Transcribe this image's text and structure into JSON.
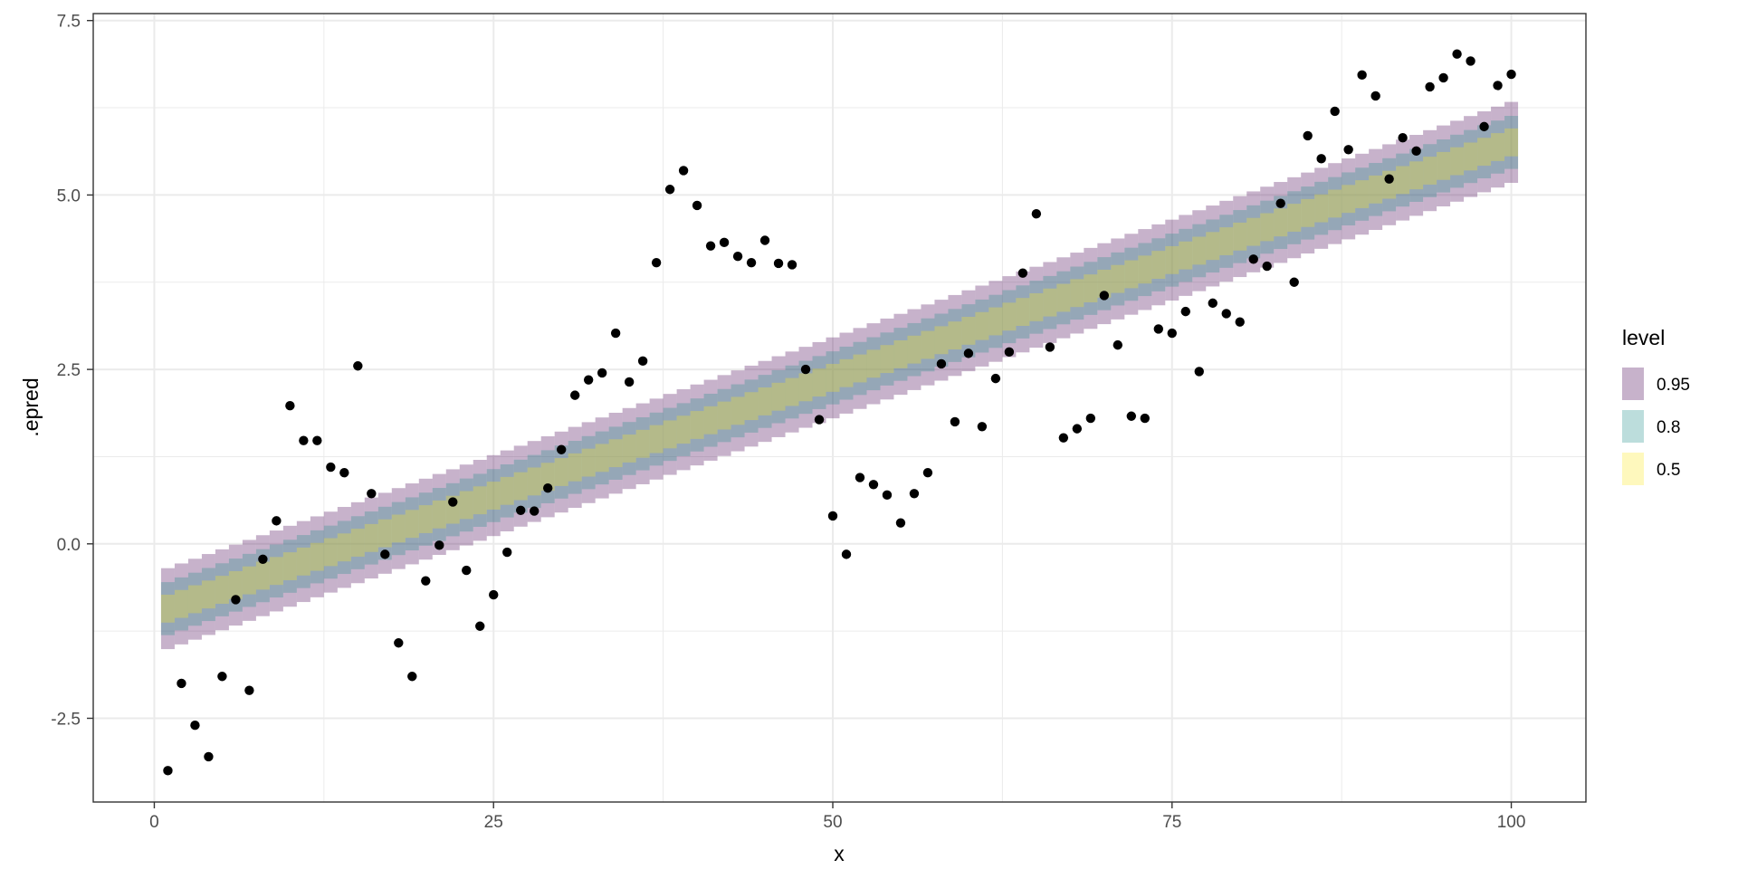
{
  "chart_data": {
    "type": "line",
    "title": "",
    "xlabel": "x",
    "ylabel": ".epred",
    "xlim": [
      -4.5,
      105.5
    ],
    "ylim": [
      -3.7,
      7.6
    ],
    "x_ticks": [
      0,
      25,
      50,
      75,
      100
    ],
    "y_ticks": [
      -2.5,
      0.0,
      2.5,
      5.0,
      7.5
    ],
    "x_tick_labels": [
      "0",
      "25",
      "50",
      "75",
      "100"
    ],
    "y_tick_labels": [
      "-2.5",
      "0.0",
      "2.5",
      "5.0",
      "7.5"
    ],
    "grid": true,
    "legend": {
      "title": "level",
      "position": "right",
      "entries": [
        {
          "label": "0.95",
          "color": "#440154",
          "alpha": 0.3
        },
        {
          "label": "0.8",
          "color": "#21908C",
          "alpha": 0.3
        },
        {
          "label": "0.5",
          "color": "#FDE725",
          "alpha": 0.3
        }
      ]
    },
    "intervals": {
      "model": "linear",
      "x_range": [
        1,
        100
      ],
      "intercept": -0.996,
      "slope": 0.0675,
      "bands": [
        {
          "level": 0.95,
          "half_width": 0.58,
          "color": "#440154",
          "alpha": 0.3
        },
        {
          "level": 0.8,
          "half_width": 0.38,
          "color": "#21908C",
          "alpha": 0.3
        },
        {
          "level": 0.5,
          "half_width": 0.2,
          "color": "#FDE725",
          "alpha": 0.3
        }
      ]
    },
    "points": {
      "x": [
        1,
        2,
        3,
        4,
        5,
        6,
        7,
        8,
        9,
        10,
        11,
        12,
        13,
        14,
        15,
        16,
        17,
        18,
        19,
        20,
        21,
        22,
        23,
        24,
        25,
        26,
        27,
        28,
        29,
        30,
        31,
        32,
        33,
        34,
        35,
        36,
        37,
        38,
        39,
        40,
        41,
        42,
        43,
        44,
        45,
        46,
        47,
        48,
        49,
        50,
        51,
        52,
        53,
        54,
        55,
        56,
        57,
        58,
        59,
        60,
        61,
        62,
        63,
        64,
        65,
        66,
        67,
        68,
        69,
        70,
        71,
        72,
        73,
        74,
        75,
        76,
        77,
        78,
        79,
        80,
        81,
        82,
        83,
        84,
        85,
        86,
        87,
        88,
        89,
        90,
        91,
        92,
        93,
        94,
        95,
        96,
        97,
        98,
        99,
        100
      ],
      "y": [
        -3.25,
        -2.0,
        -2.6,
        -3.05,
        -1.9,
        -0.8,
        -2.1,
        -0.22,
        0.33,
        1.98,
        1.48,
        1.48,
        1.1,
        1.02,
        2.55,
        0.72,
        -0.15,
        -1.42,
        -1.9,
        -0.53,
        -0.02,
        0.6,
        -0.38,
        -1.18,
        -0.73,
        -0.12,
        0.48,
        0.47,
        0.8,
        1.35,
        2.13,
        2.35,
        2.45,
        3.02,
        2.32,
        2.62,
        4.03,
        5.08,
        5.35,
        4.85,
        4.27,
        4.32,
        4.12,
        4.03,
        4.35,
        4.02,
        4.0,
        2.5,
        1.78,
        0.4,
        -0.15,
        0.95,
        0.85,
        0.7,
        0.3,
        0.72,
        1.02,
        2.58,
        1.75,
        2.73,
        1.68,
        2.37,
        2.75,
        3.88,
        4.73,
        2.82,
        1.52,
        1.65,
        1.8,
        3.56,
        2.85,
        1.83,
        1.8,
        3.08,
        3.02,
        3.33,
        2.47,
        3.45,
        3.3,
        3.18,
        4.08,
        3.98,
        4.88,
        3.75,
        5.85,
        5.52,
        6.2,
        5.65,
        6.72,
        6.42,
        5.23,
        5.82,
        5.63,
        6.55,
        6.68,
        7.02,
        6.92,
        5.98,
        6.57,
        6.73
      ]
    }
  }
}
